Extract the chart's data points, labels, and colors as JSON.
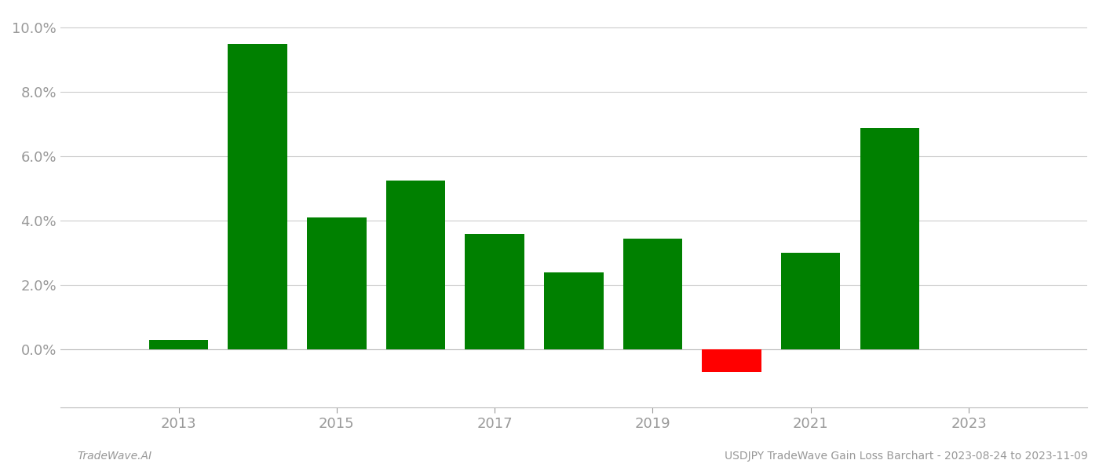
{
  "years": [
    2013,
    2014,
    2015,
    2016,
    2017,
    2018,
    2019,
    2020,
    2021,
    2022
  ],
  "values": [
    0.003,
    0.095,
    0.041,
    0.0525,
    0.036,
    0.024,
    0.0345,
    -0.007,
    0.03,
    0.069
  ],
  "colors": [
    "#008000",
    "#008000",
    "#008000",
    "#008000",
    "#008000",
    "#008000",
    "#008000",
    "#ff0000",
    "#008000",
    "#008000"
  ],
  "ylim": [
    -0.018,
    0.105
  ],
  "yticks": [
    0.0,
    0.02,
    0.04,
    0.06,
    0.08,
    0.1
  ],
  "xtick_labels": [
    "2013",
    "2015",
    "2017",
    "2019",
    "2021",
    "2023"
  ],
  "xtick_positions": [
    2013,
    2015,
    2017,
    2019,
    2021,
    2023
  ],
  "xlim_left": 2011.5,
  "xlim_right": 2024.5,
  "footer_left": "TradeWave.AI",
  "footer_right": "USDJPY TradeWave Gain Loss Barchart - 2023-08-24 to 2023-11-09",
  "background_color": "#ffffff",
  "bar_width": 0.75,
  "grid_color": "#cccccc",
  "spine_color": "#bbbbbb",
  "label_color": "#999999",
  "label_fontsize": 13,
  "footer_fontsize": 10
}
